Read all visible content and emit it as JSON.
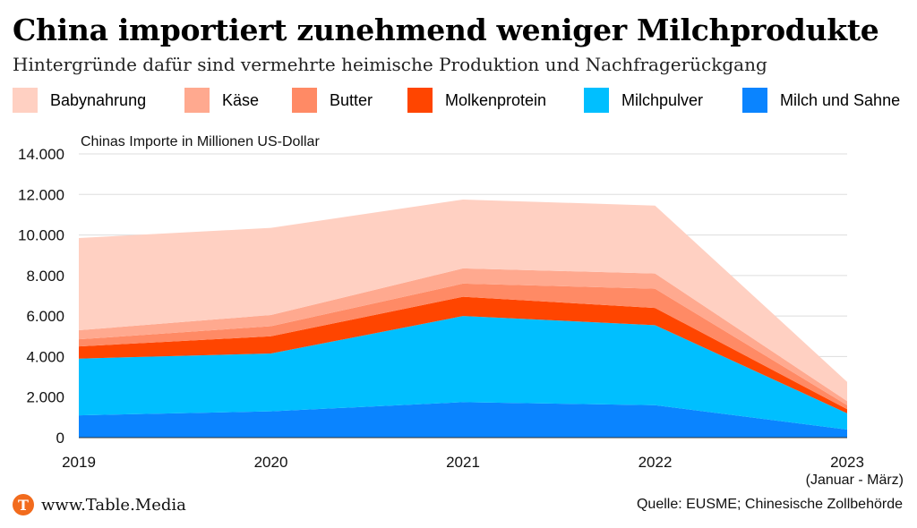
{
  "title": "China importiert zunehmend weniger Milchprodukte",
  "subtitle": "Hintergründe dafür sind vermehrte heimische Produktion und Nachfragerückgang",
  "legend": [
    {
      "name": "Babynahrung",
      "color": "#ffd0c2"
    },
    {
      "name": "Käse",
      "color": "#ffa98f"
    },
    {
      "name": "Butter",
      "color": "#ff8a65"
    },
    {
      "name": "Molkenprotein",
      "color": "#ff4500"
    },
    {
      "name": "Milchpulver",
      "color": "#00bfff"
    },
    {
      "name": "Milch und Sahne",
      "color": "#0a84ff"
    }
  ],
  "chart_data": {
    "type": "area",
    "stacked": true,
    "ylabel": "Chinas Importe in Millionen US-Dollar",
    "ylim": [
      0,
      14000
    ],
    "yticks": [
      "0",
      "2.000",
      "4.000",
      "6.000",
      "8.000",
      "10.000",
      "12.000",
      "14.000"
    ],
    "x": [
      "2019",
      "2020",
      "2021",
      "2022",
      "2023"
    ],
    "x_sublabels": [
      "",
      "",
      "",
      "",
      "(Januar - März)"
    ],
    "grid": true,
    "legend_position": "top",
    "series": [
      {
        "name": "Milch und Sahne",
        "color": "#0a84ff",
        "values": [
          1100,
          1300,
          1750,
          1600,
          400
        ]
      },
      {
        "name": "Milchpulver",
        "color": "#00bfff",
        "values": [
          2800,
          2850,
          4250,
          3950,
          800
        ]
      },
      {
        "name": "Molkenprotein",
        "color": "#ff4500",
        "values": [
          600,
          850,
          950,
          850,
          200
        ]
      },
      {
        "name": "Butter",
        "color": "#ff8a65",
        "values": [
          350,
          500,
          650,
          950,
          200
        ]
      },
      {
        "name": "Käse",
        "color": "#ffa98f",
        "values": [
          450,
          550,
          750,
          750,
          200
        ]
      },
      {
        "name": "Babynahrung",
        "color": "#ffd0c2",
        "values": [
          4550,
          4300,
          3400,
          3350,
          950
        ]
      }
    ]
  },
  "footer": {
    "logo_letter": "T",
    "brand": "www.Table.Media",
    "source": "Quelle: EUSME; Chinesische Zollbehörde"
  }
}
